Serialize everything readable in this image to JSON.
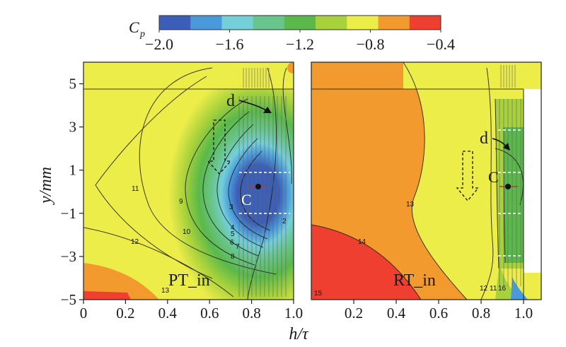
{
  "chart_data": {
    "type": "heatmap",
    "colorbar": {
      "title": "C",
      "title_subscript": "p",
      "ticks": [
        "−2.0",
        "−1.6",
        "−1.2",
        "−0.8",
        "−0.4"
      ],
      "range": [
        -2.0,
        -0.4
      ],
      "step": 0.2,
      "colors": [
        "#3b5fb8",
        "#4a99db",
        "#74cfd9",
        "#69c58e",
        "#5ab94a",
        "#a8d23b",
        "#eded4a",
        "#f39a2f",
        "#ee3f30"
      ]
    },
    "x_axis": {
      "label": "h/τ",
      "ticks_left": [
        "0",
        "0.2",
        "0.4",
        "0.6",
        "0.8",
        "1.0"
      ],
      "ticks_right": [
        "0.2",
        "0.4",
        "0.6",
        "0.8",
        "1.0"
      ],
      "range": [
        0,
        1.0
      ]
    },
    "y_axis": {
      "label": "y/mm",
      "ticks": [
        "5",
        "3",
        "1",
        "−1",
        "−3",
        "−5"
      ],
      "range": [
        -5,
        6
      ]
    },
    "panels": [
      {
        "name": "PT_in",
        "point_label": "C",
        "point": {
          "x": 0.85,
          "y": 0.9
        },
        "arrow_label": "d",
        "contour_labels": [
          "11",
          "12",
          "9",
          "10",
          "3",
          "4",
          "5",
          "6",
          "7",
          "8",
          "2",
          "13"
        ]
      },
      {
        "name": "RT_in",
        "point_label": "C",
        "point": {
          "x": 0.95,
          "y": 0.9
        },
        "arrow_label": "d",
        "contour_labels": [
          "13",
          "14",
          "15",
          "12",
          "11",
          "16"
        ]
      }
    ]
  }
}
